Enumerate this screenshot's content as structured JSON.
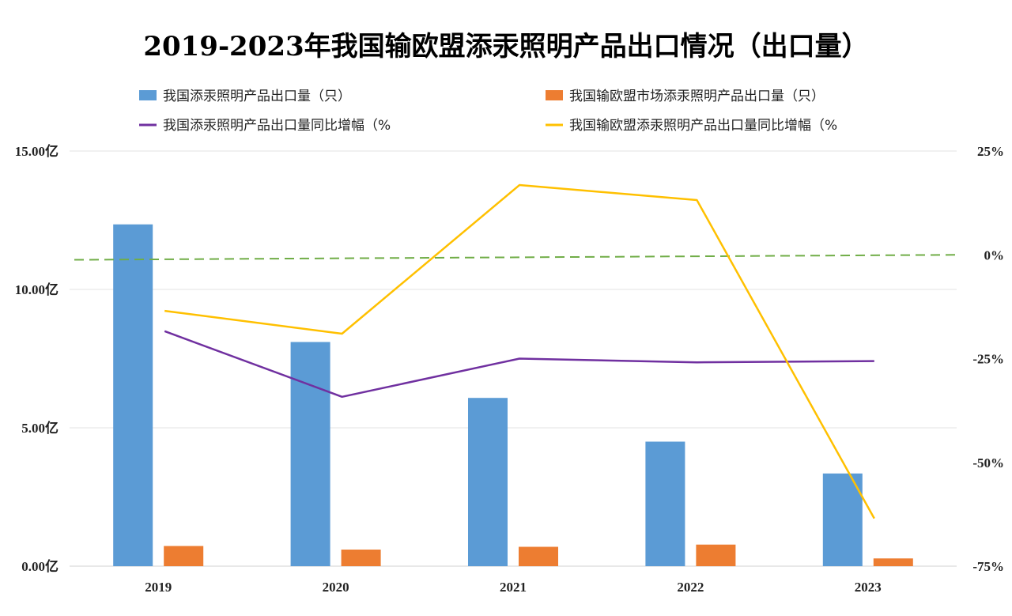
{
  "chart_data": {
    "type": "bar+line",
    "title": "2019-2023年我国输欧盟添汞照明产品出口情况（出口量）",
    "categories": [
      "2019",
      "2020",
      "2021",
      "2022",
      "2023"
    ],
    "series": [
      {
        "name": "我国添汞照明产品出口量（只）",
        "kind": "bar",
        "axis": "left",
        "color": "#5B9BD5",
        "values": [
          1235000000,
          810000000,
          608000000,
          450000000,
          335000000
        ]
      },
      {
        "name": "我国输欧盟市场添汞照明产品出口量（只）",
        "kind": "bar",
        "axis": "left",
        "color": "#ED7D31",
        "values": [
          73000000,
          60000000,
          70000000,
          78000000,
          28000000
        ]
      },
      {
        "name": "我国添汞照明产品出口量同比增幅（%",
        "kind": "line",
        "axis": "right",
        "color": "#7030A0",
        "values": [
          -18.4,
          -34.2,
          -25.0,
          -25.9,
          -25.6
        ]
      },
      {
        "name": "我国输欧盟添汞照明产品出口量同比增幅（%",
        "kind": "line",
        "axis": "right",
        "color": "#FFC000",
        "values": [
          -13.5,
          -19.0,
          16.8,
          13.2,
          -63.5
        ]
      }
    ],
    "reference_line": {
      "axis": "right",
      "style": "dashed",
      "color": "#70AD47",
      "start": -1.2,
      "end": 0.0
    },
    "left_axis": {
      "min": 0,
      "max": 1500000000,
      "ticks": [
        0,
        500000000,
        1000000000,
        1500000000
      ],
      "tick_labels": [
        "0.00亿",
        "5.00亿",
        "10.00亿",
        "15.00亿"
      ]
    },
    "right_axis": {
      "min": -75,
      "max": 25,
      "ticks": [
        -75,
        -50,
        -25,
        0,
        25
      ],
      "tick_labels": [
        "-75%",
        "-50%",
        "-25%",
        "0%",
        "25%"
      ]
    },
    "grid": true,
    "legend_position": "top"
  }
}
